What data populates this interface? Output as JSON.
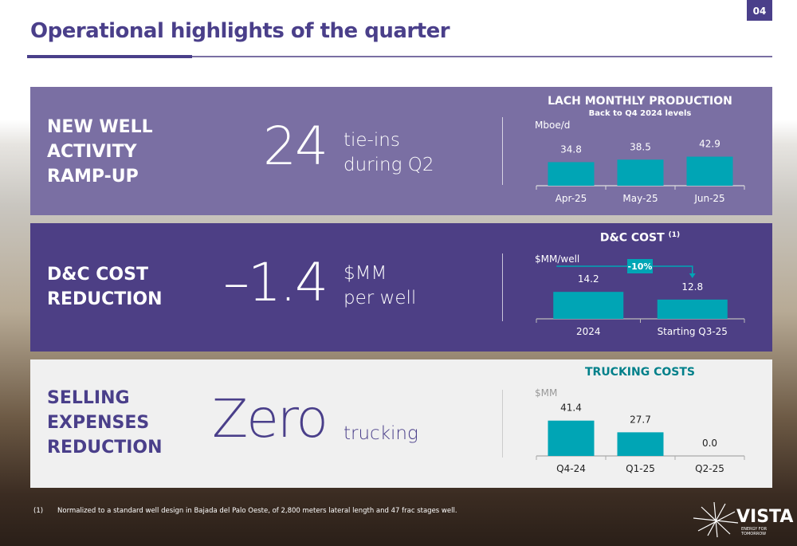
{
  "page": {
    "title": "Operational highlights of the quarter",
    "page_number": "04"
  },
  "panels": [
    {
      "heading": "NEW WELL\nACTIVITY\nRAMP-UP",
      "big": "24",
      "sub": "tie-ins\nduring Q2"
    },
    {
      "heading": "D&C COST\nREDUCTION",
      "big": "–1.4",
      "sub": "$MM\nper well"
    },
    {
      "heading": "SELLING\nEXPENSES\nREDUCTION",
      "big": "Zero",
      "sub": "trucking"
    }
  ],
  "chart_data": [
    {
      "type": "bar",
      "title": "LACH MONTHLY PRODUCTION",
      "subtitle": "Back to Q4 2024 levels",
      "ylabel": "Mboe/d",
      "categories": [
        "Apr-25",
        "May-25",
        "Jun-25"
      ],
      "values": [
        34.8,
        38.5,
        42.9
      ],
      "color": "#00a5b5"
    },
    {
      "type": "bar",
      "title": "D&C COST",
      "title_sup": "(1)",
      "ylabel": "$MM/well",
      "categories": [
        "2024",
        "Starting Q3-25"
      ],
      "values": [
        14.2,
        12.8
      ],
      "annotation": "-10%",
      "color": "#00a5b5"
    },
    {
      "type": "bar",
      "title": "TRUCKING COSTS",
      "ylabel": "$MM",
      "categories": [
        "Q4-24",
        "Q1-25",
        "Q2-25"
      ],
      "values": [
        41.4,
        27.7,
        0.0
      ],
      "color": "#00a5b5"
    }
  ],
  "footnote": {
    "marker": "(1)",
    "text": "Normalized to a standard well design in Bajada del Palo Oeste, of 2,800 meters lateral length and 47 frac stages well."
  },
  "logo": {
    "name": "VISTA",
    "tagline": "ENERGY FOR TOMORROW"
  },
  "colors": {
    "brand": "#4a3f8a",
    "accent": "#00a5b5",
    "title_teal": "#00808a"
  }
}
